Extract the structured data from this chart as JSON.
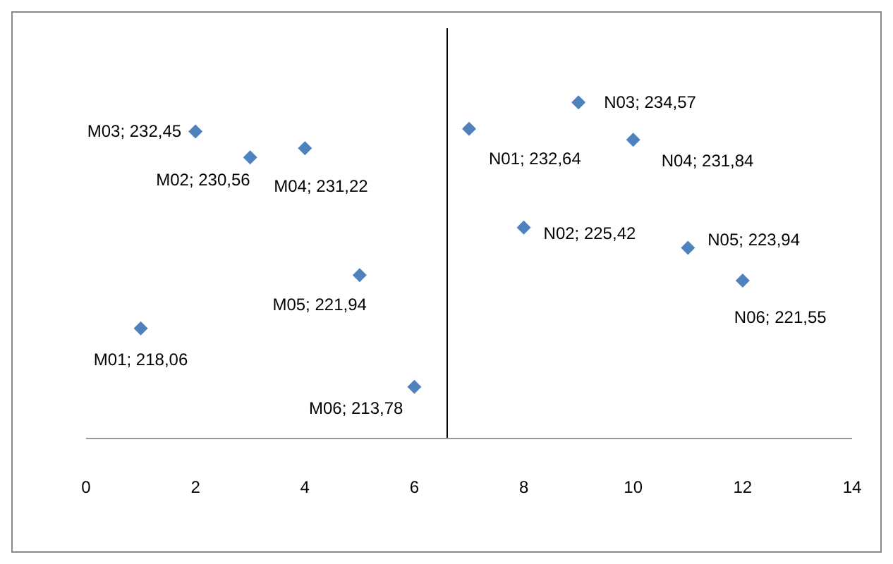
{
  "chart_data": {
    "type": "scatter",
    "x": [
      1,
      2,
      3,
      4,
      5,
      6,
      7,
      8,
      9,
      10,
      11,
      12
    ],
    "values": [
      218.06,
      232.45,
      230.56,
      231.22,
      221.94,
      213.78,
      232.64,
      225.42,
      234.57,
      231.84,
      223.94,
      221.55
    ],
    "value_labels": [
      "M01; 218,06",
      "M03; 232,45",
      "M02; 230,56",
      "M04; 231,22",
      "M05; 221,94",
      "M06; 213,78",
      "N01; 232,64",
      "N02; 225,42",
      "N03; 234,57",
      "N04; 231,84",
      "N05; 223,94",
      "N06; 221,55"
    ],
    "color": "#4f81bd",
    "marker": "diamond",
    "xlim": [
      0,
      14
    ],
    "xticks": [
      0,
      2,
      4,
      6,
      8,
      10,
      12,
      14
    ],
    "ylim": [
      210,
      240
    ],
    "tick_labels": "x",
    "grid": false,
    "legend": false,
    "ref_lines": [
      {
        "axis": "x",
        "value": 6.6,
        "color": "#000000"
      }
    ]
  }
}
